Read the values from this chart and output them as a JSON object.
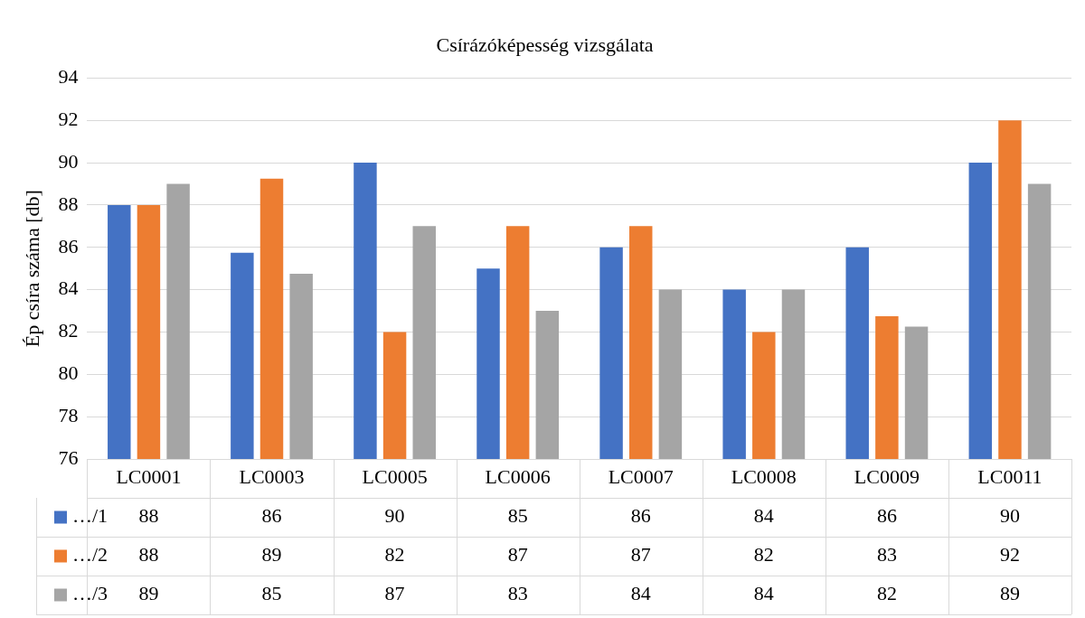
{
  "chart_data": {
    "type": "bar",
    "title": "Csírázóképesség vizsgálata",
    "ylabel": "Ép csíra száma [db]",
    "categories": [
      "LC0001",
      "LC0003",
      "LC0005",
      "LC0006",
      "LC0007",
      "LC0008",
      "LC0009",
      "LC0011"
    ],
    "series": [
      {
        "name": "…/1",
        "color": "#4472c4",
        "values": [
          88,
          85.75,
          90,
          85,
          86,
          84,
          86,
          90
        ],
        "value_labels": [
          "88",
          "86",
          "90",
          "85",
          "86",
          "84",
          "86",
          "90"
        ]
      },
      {
        "name": "…/2",
        "color": "#ed7d31",
        "values": [
          88,
          89.25,
          82,
          87,
          87,
          82,
          82.75,
          92
        ],
        "value_labels": [
          "88",
          "89",
          "82",
          "87",
          "87",
          "82",
          "83",
          "92"
        ]
      },
      {
        "name": "…/3",
        "color": "#a5a5a5",
        "values": [
          89,
          84.75,
          87,
          83,
          84,
          84,
          82.25,
          89
        ],
        "value_labels": [
          "89",
          "85",
          "87",
          "83",
          "84",
          "84",
          "82",
          "89"
        ]
      }
    ],
    "ylim": [
      76,
      94
    ],
    "yticks": [
      76,
      78,
      80,
      82,
      84,
      86,
      88,
      90,
      92,
      94
    ],
    "grid": "y",
    "legend": "bottom"
  }
}
